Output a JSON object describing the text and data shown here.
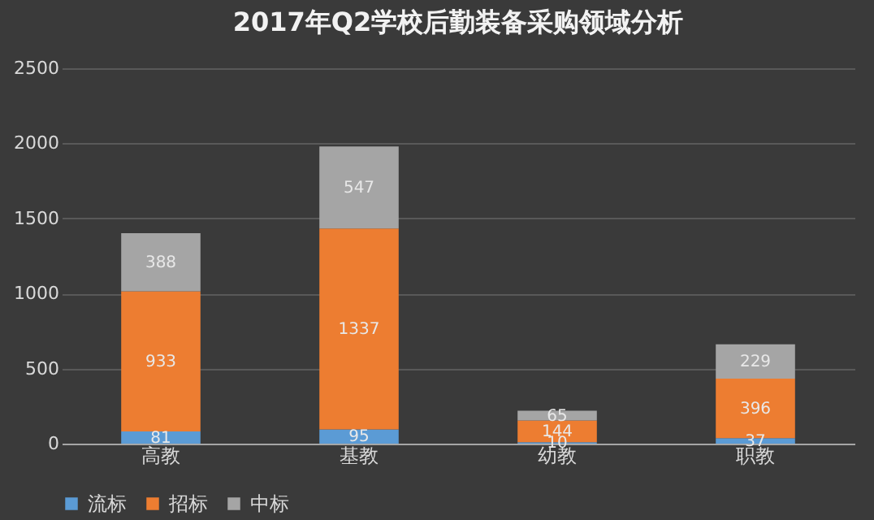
{
  "chart_data": {
    "type": "bar",
    "title": "2017年Q2学校后勤装备采购领域分析",
    "categories": [
      "高教",
      "基教",
      "幼教",
      "职教"
    ],
    "stacked": true,
    "series": [
      {
        "name": "流标",
        "color": "#5b9bd5",
        "values": [
          81,
          95,
          10,
          37
        ]
      },
      {
        "name": "招标",
        "color": "#ed7d31",
        "values": [
          933,
          1337,
          144,
          396
        ]
      },
      {
        "name": "中标",
        "color": "#a5a5a5",
        "values": [
          388,
          547,
          65,
          229
        ]
      }
    ],
    "ylim": [
      0,
      2500
    ],
    "yticks": [
      0,
      500,
      1000,
      1500,
      2000,
      2500
    ],
    "grid": "y",
    "legend": "bottom",
    "data_labels": true
  }
}
